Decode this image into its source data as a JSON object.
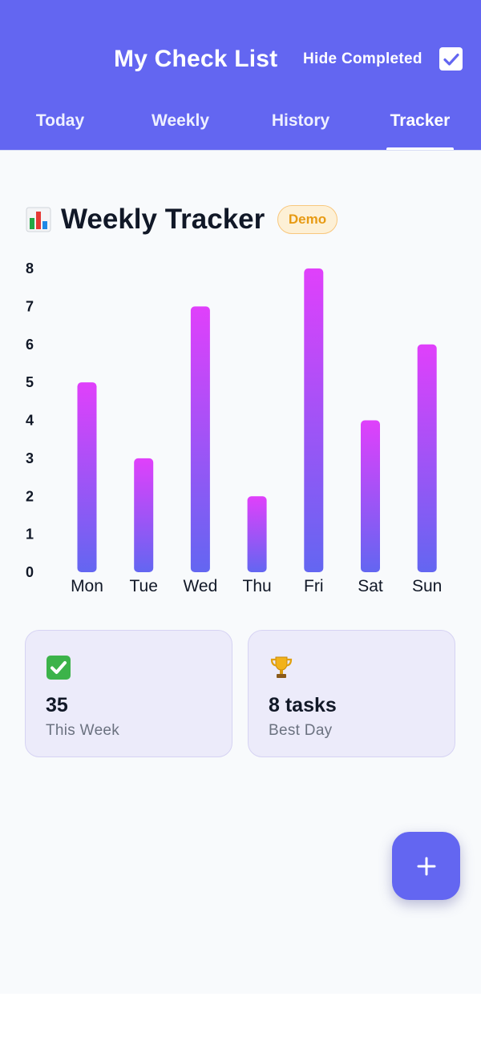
{
  "header": {
    "title": "My Check List",
    "hide_completed_label": "Hide Completed",
    "hide_completed_checked": true,
    "accent_color": "#6366f1"
  },
  "tabs": [
    {
      "label": "Today",
      "active": false
    },
    {
      "label": "Weekly",
      "active": false
    },
    {
      "label": "History",
      "active": false
    },
    {
      "label": "Tracker",
      "active": true
    }
  ],
  "tracker": {
    "icon": "bar-chart-emoji-icon",
    "title": "Weekly Tracker",
    "badge": "Demo"
  },
  "chart_data": {
    "type": "bar",
    "categories": [
      "Mon",
      "Tue",
      "Wed",
      "Thu",
      "Fri",
      "Sat",
      "Sun"
    ],
    "values": [
      5,
      3,
      7,
      2,
      8,
      4,
      6
    ],
    "y_ticks": [
      "0",
      "1",
      "2",
      "3",
      "4",
      "5",
      "6",
      "7",
      "8"
    ],
    "ylim": [
      0,
      8
    ],
    "grid": false,
    "bar_gradient": {
      "top": "#e040fb",
      "bottom": "#6366f1"
    }
  },
  "stats": [
    {
      "icon": "check-mark-emoji-icon",
      "value": "35",
      "label": "This Week"
    },
    {
      "icon": "trophy-emoji-icon",
      "value": "8 tasks",
      "label": "Best Day"
    }
  ],
  "fab": {
    "icon": "plus-icon"
  }
}
